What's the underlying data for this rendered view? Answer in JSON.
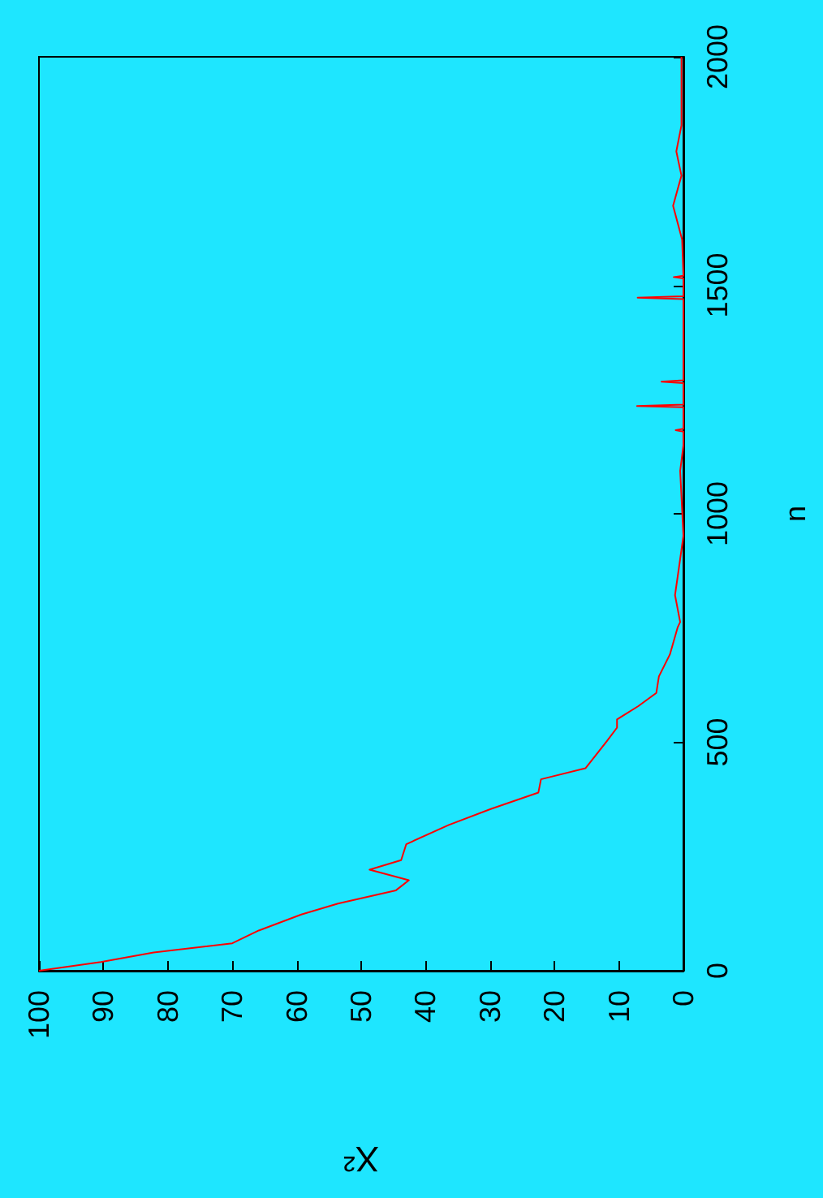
{
  "chart_data": {
    "type": "line",
    "xlabel": "X²",
    "ylabel": "n",
    "x": [
      100,
      90.4,
      82.2,
      70,
      65.9,
      59.3,
      53.6,
      44.6,
      42.6,
      48.7,
      43.8,
      43,
      36.4,
      29.9,
      22.5,
      22.1,
      15.2,
      11.9,
      10.3,
      10.3,
      7,
      4.2,
      3.8,
      2.1,
      0.9,
      0.5,
      1.3,
      0.7,
      0,
      0.5,
      0,
      0,
      1.2,
      0,
      0,
      7.2,
      0,
      0,
      3.4,
      0,
      0,
      7.1,
      0,
      0,
      1.5,
      0,
      0.2,
      1.6,
      0.3,
      1.1,
      0.3,
      0.3
    ],
    "series": [
      {
        "color": "#ff0000",
        "values": [
          0,
          19,
          40,
          60,
          88,
          123,
          147,
          176,
          198,
          221,
          242,
          277,
          319,
          354,
          390,
          419,
          443,
          502,
          532,
          550,
          579,
          608,
          644,
          692,
          751,
          763,
          822,
          881,
          952,
          1094,
          1150,
          1180,
          1183,
          1186,
          1233,
          1236,
          1239,
          1286,
          1289,
          1292,
          1470,
          1473,
          1476,
          1515,
          1518,
          1521,
          1600,
          1674,
          1740,
          1793,
          1850,
          2000
        ]
      }
    ],
    "xlim": [
      100,
      0
    ],
    "xticks": [
      0,
      10,
      20,
      30,
      40,
      50,
      60,
      70,
      80,
      90,
      100
    ],
    "ylim": [
      0,
      2000
    ],
    "yticks": [
      0,
      500,
      1000,
      1500,
      2000
    ],
    "grid": false,
    "marker": "none",
    "line_style": "solid"
  }
}
